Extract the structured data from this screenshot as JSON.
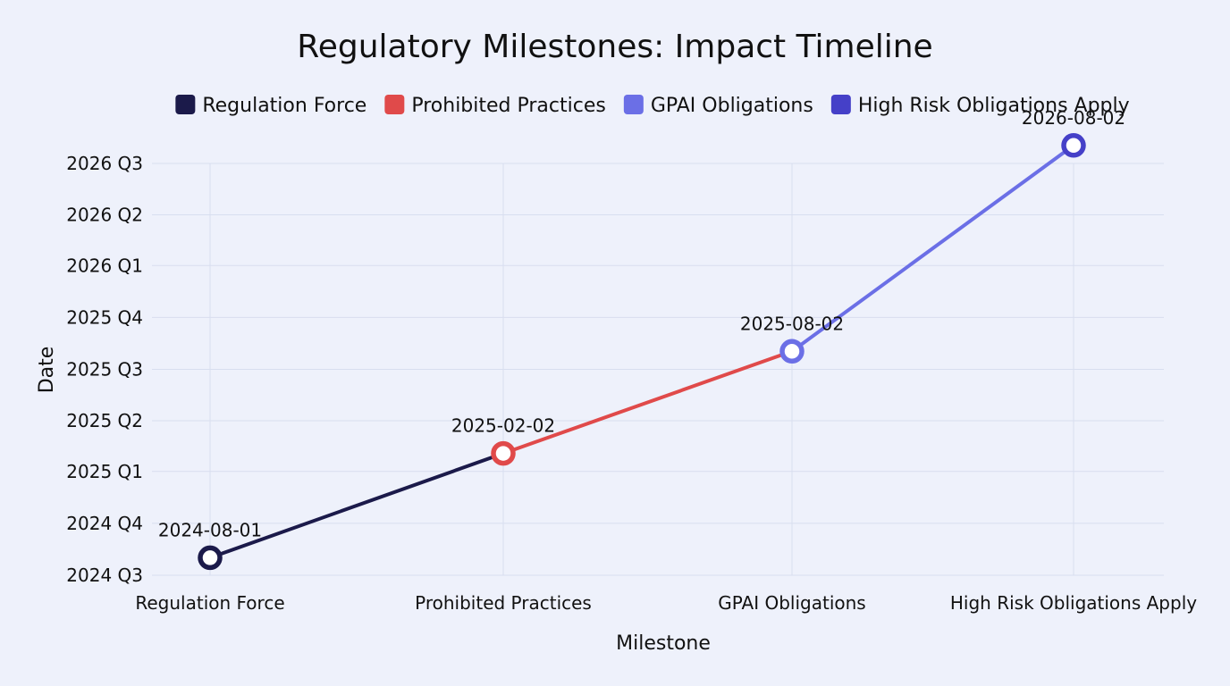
{
  "chart_data": {
    "type": "line",
    "title": "Regulatory Milestones: Impact Timeline",
    "xlabel": "Milestone",
    "ylabel": "Date",
    "categories": [
      "Regulation Force",
      "Prohibited Practices",
      "GPAI Obligations",
      "High Risk Obligations Apply"
    ],
    "values": [
      "2024-08-01",
      "2025-02-02",
      "2025-08-02",
      "2026-08-02"
    ],
    "data_labels": [
      "2024-08-01",
      "2025-02-02",
      "2025-08-02",
      "2026-08-02"
    ],
    "y_ticks": [
      "2024 Q3",
      "2024 Q4",
      "2025 Q1",
      "2025 Q2",
      "2025 Q3",
      "2025 Q4",
      "2026 Q1",
      "2026 Q2",
      "2026 Q3"
    ],
    "y_tick_dates": [
      "2024-07-01",
      "2024-10-01",
      "2025-01-01",
      "2025-04-01",
      "2025-07-01",
      "2025-10-01",
      "2026-01-01",
      "2026-04-01",
      "2026-07-01"
    ],
    "ylim": [
      "2024-07-01",
      "2026-07-01"
    ],
    "grid": true,
    "legend": {
      "position": "top",
      "entries": [
        {
          "label": "Regulation Force",
          "color": "#1b1a4a"
        },
        {
          "label": "Prohibited Practices",
          "color": "#e04a4a"
        },
        {
          "label": "GPAI Obligations",
          "color": "#6b6fe6"
        },
        {
          "label": "High Risk Obligations Apply",
          "color": "#4540c8"
        }
      ]
    },
    "point_colors": [
      "#1b1a4a",
      "#e04a4a",
      "#6b6fe6",
      "#4540c8"
    ],
    "segment_colors": [
      "#1b1a4a",
      "#e04a4a",
      "#6b6fe6"
    ]
  }
}
